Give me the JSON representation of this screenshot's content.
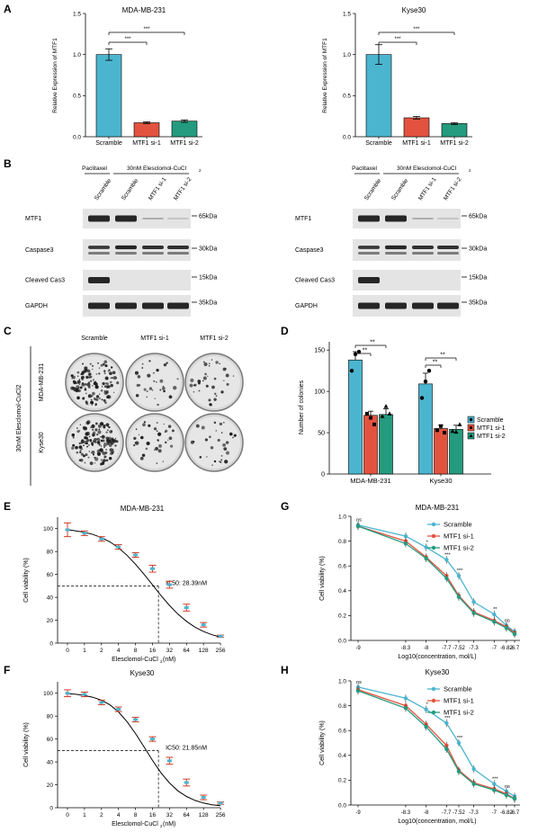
{
  "panel_letters": [
    "A",
    "B",
    "C",
    "D",
    "E",
    "F",
    "G",
    "H"
  ],
  "colors": {
    "scramble": "#4bb5cf",
    "si1": "#e2533f",
    "si2": "#249b7e",
    "blot_bg": "#e4e4e4",
    "band": "#262626"
  },
  "panel_A": [
    {
      "title": "MDA-MB-231",
      "ylabel": "Relative Expression of MTF1",
      "yticks": [
        "0.0",
        "0.5",
        "1.0",
        "1.5"
      ],
      "sig": [
        "***",
        "***"
      ]
    },
    {
      "title": "Kyse30",
      "ylabel": "Relative Expression of MTF1",
      "yticks": [
        "0.0",
        "0.5",
        "1.0",
        "1.5"
      ],
      "sig": [
        "***",
        "***"
      ]
    }
  ],
  "panel_B": {
    "header_left": "Paclitaxel",
    "header_right": "30nM Elesclomol-CuCl",
    "header_right_sub": "2",
    "lanes": [
      "Scramble",
      "Scramble",
      "MTF1 si-1",
      "MTF1 si-2"
    ],
    "rows": [
      "MTF1",
      "Caspase3",
      "Cleaved Cas3",
      "GAPDH"
    ],
    "markers": [
      "65kDa",
      "30kDa",
      "15kDa",
      "35kDa"
    ]
  },
  "panel_C": {
    "columns": [
      "Scramble",
      "MTF1 si-1",
      "MTF1 si-2"
    ],
    "rows": [
      "MDA-MB-231",
      "Kyse30"
    ],
    "side_label": "30nM Elesclomol-CuCl2"
  },
  "panel_D": {
    "sig": [
      "**",
      "**",
      "**",
      "**"
    ]
  },
  "panel_E": {
    "ic50_label": "IC50: 28.39nM",
    "xlabel_main": "Elesclomol-CuCl",
    "xlabel_sub": "2",
    "xlabel_unit": " (nM)"
  },
  "panel_F": {
    "ic50_label": "IC50: 21.85nM",
    "xlabel_main": "Elesclomol-CuCl",
    "xlabel_sub": "2",
    "xlabel_unit": " (nM)"
  },
  "panel_G": {
    "sig_labels": [
      "ns",
      "*",
      "***",
      "***",
      "**",
      "ns"
    ]
  },
  "panel_H": {
    "sig_labels": [
      "ns",
      "*",
      "***",
      "***",
      "***",
      "ns"
    ]
  },
  "chart_data": [
    {
      "type": "bar",
      "title": "MDA-MB-231",
      "categories": [
        "Scramble",
        "MTF1 si-1",
        "MTF1 si-2"
      ],
      "values": [
        1.0,
        0.17,
        0.19
      ],
      "errors": [
        0.07,
        0.01,
        0.015
      ],
      "xlabel": "",
      "ylabel": "Relative Expression of MTF1",
      "ylim": [
        0,
        1.5
      ]
    },
    {
      "type": "bar",
      "title": "Kyse30",
      "categories": [
        "Scramble",
        "MTF1 si-1",
        "MTF1 si-2"
      ],
      "values": [
        1.0,
        0.23,
        0.16
      ],
      "errors": [
        0.12,
        0.015,
        0.012
      ],
      "xlabel": "",
      "ylabel": "Relative Expression of MTF1",
      "ylim": [
        0,
        1.5
      ]
    },
    {
      "type": "bar",
      "title": "",
      "categories": [
        "MDA-MB-231",
        "Kyse30"
      ],
      "yticks": [
        0,
        50,
        100,
        150
      ],
      "ylabel": "Number of colonies",
      "ylim": [
        0,
        160
      ],
      "series": [
        {
          "name": "Scramble",
          "values": [
            138,
            109
          ],
          "errors": [
            10,
            13
          ],
          "points": [
            [
              125,
              145,
              148
            ],
            [
              92,
              112,
              125
            ]
          ]
        },
        {
          "name": "MTF1 si-1",
          "values": [
            71,
            55
          ],
          "errors": [
            5,
            4
          ],
          "points": [
            [
              73,
              68,
              60
            ],
            [
              53,
              58,
              50
            ]
          ]
        },
        {
          "name": "MTF1 si-2",
          "values": [
            72,
            54
          ],
          "errors": [
            7,
            5
          ],
          "points": [
            [
              70,
              82,
              73
            ],
            [
              52,
              51,
              60
            ]
          ]
        }
      ]
    },
    {
      "type": "line",
      "title": "MDA-MB-231",
      "x": [
        "0",
        "1",
        "2",
        "4",
        "8",
        "16",
        "32",
        "64",
        "128",
        "256"
      ],
      "y": [
        99,
        96,
        91,
        84,
        77,
        65,
        51,
        31,
        16,
        6
      ],
      "errors": [
        6,
        2,
        2,
        2,
        2,
        3,
        3,
        3,
        2,
        1
      ],
      "fit_x": [
        0,
        0.5,
        1,
        1.5,
        2,
        2.5,
        3,
        3.5,
        4,
        4.5,
        5,
        5.5,
        6,
        6.5,
        7,
        7.5,
        8,
        8.5,
        9
      ],
      "fit_y": [
        99.1,
        98,
        96.8,
        94.9,
        92.2,
        88.4,
        83.3,
        76.8,
        68.9,
        60.2,
        50.9,
        41.6,
        32.9,
        25.3,
        19,
        13.9,
        10.1,
        7.3,
        5.2
      ],
      "xlabel": "Elesclomol-CuCl2 (nM)",
      "ylabel": "Cell viability (%)",
      "ylim": [
        0,
        110
      ],
      "yticks": [
        0,
        20,
        40,
        60,
        80,
        100
      ]
    },
    {
      "type": "line",
      "title": "Kyse30",
      "x": [
        "0",
        "1",
        "2",
        "4",
        "8",
        "16",
        "32",
        "64",
        "128",
        "256"
      ],
      "y": [
        100,
        99,
        92,
        86,
        77,
        60,
        41,
        22,
        9,
        4
      ],
      "errors": [
        3,
        2,
        2,
        2,
        2,
        2,
        3,
        3,
        2,
        1
      ],
      "fit_x": [
        0,
        0.5,
        1,
        1.5,
        2,
        2.5,
        3,
        3.5,
        4,
        4.5,
        5,
        5.5,
        6,
        6.5,
        7,
        7.5,
        8,
        8.5,
        9
      ],
      "fit_y": [
        99.6,
        99.1,
        98,
        96.5,
        93.9,
        89.8,
        83.7,
        75.3,
        64.8,
        53.1,
        41.3,
        30.5,
        21.6,
        14.7,
        9.8,
        6.4,
        4.1,
        2.6,
        1.7
      ],
      "xlabel": "Elesclomol-CuCl2 (nM)",
      "ylabel": "Cell viability (%)",
      "ylim": [
        0,
        110
      ],
      "yticks": [
        0,
        20,
        40,
        60,
        80,
        100
      ]
    },
    {
      "type": "line",
      "title": "MDA-MB-231",
      "x": [
        -9,
        -8.3,
        -8,
        -7.7,
        -7.52,
        -7.3,
        -7,
        -6.82,
        -6.7
      ],
      "series": [
        {
          "name": "Scramble",
          "values": [
            0.93,
            0.84,
            0.75,
            0.65,
            0.52,
            0.31,
            0.21,
            0.12,
            0.07
          ]
        },
        {
          "name": "MTF1 si-1",
          "values": [
            0.92,
            0.8,
            0.67,
            0.52,
            0.36,
            0.23,
            0.16,
            0.11,
            0.06
          ]
        },
        {
          "name": "MTF1 si-2",
          "values": [
            0.92,
            0.78,
            0.66,
            0.5,
            0.35,
            0.22,
            0.15,
            0.1,
            0.05
          ]
        }
      ],
      "xlabel": "Log10(concentration, mol/L)",
      "ylabel": "Cell viability (%)",
      "ylim": [
        0,
        1.0
      ],
      "yticks": [
        0,
        0.2,
        0.4,
        0.6,
        0.8,
        1.0
      ]
    },
    {
      "type": "line",
      "title": "Kyse30",
      "x": [
        -9,
        -8.3,
        -8,
        -7.7,
        -7.52,
        -7.3,
        -7,
        -6.82,
        -6.7
      ],
      "series": [
        {
          "name": "Scramble",
          "values": [
            0.95,
            0.86,
            0.77,
            0.66,
            0.5,
            0.29,
            0.17,
            0.11,
            0.07
          ]
        },
        {
          "name": "MTF1 si-1",
          "values": [
            0.93,
            0.8,
            0.65,
            0.48,
            0.28,
            0.18,
            0.13,
            0.09,
            0.05
          ]
        },
        {
          "name": "MTF1 si-2",
          "values": [
            0.92,
            0.78,
            0.63,
            0.45,
            0.27,
            0.17,
            0.12,
            0.08,
            0.05
          ]
        }
      ],
      "xlabel": "Log10(concentration, mol/L)",
      "ylabel": "Cell viability (%)",
      "ylim": [
        0,
        1.0
      ],
      "yticks": [
        0,
        0.2,
        0.4,
        0.6,
        0.8,
        1.0
      ]
    }
  ]
}
